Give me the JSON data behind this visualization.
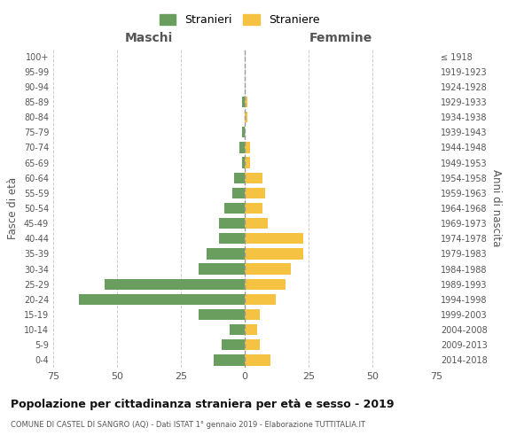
{
  "age_groups": [
    "100+",
    "95-99",
    "90-94",
    "85-89",
    "80-84",
    "75-79",
    "70-74",
    "65-69",
    "60-64",
    "55-59",
    "50-54",
    "45-49",
    "40-44",
    "35-39",
    "30-34",
    "25-29",
    "20-24",
    "15-19",
    "10-14",
    "5-9",
    "0-4"
  ],
  "birth_years": [
    "≤ 1918",
    "1919-1923",
    "1924-1928",
    "1929-1933",
    "1934-1938",
    "1939-1943",
    "1944-1948",
    "1949-1953",
    "1954-1958",
    "1959-1963",
    "1964-1968",
    "1969-1973",
    "1974-1978",
    "1979-1983",
    "1984-1988",
    "1989-1993",
    "1994-1998",
    "1999-2003",
    "2004-2008",
    "2009-2013",
    "2014-2018"
  ],
  "males": [
    0,
    0,
    0,
    1,
    0,
    1,
    2,
    1,
    4,
    5,
    8,
    10,
    10,
    15,
    18,
    55,
    65,
    18,
    6,
    9,
    12
  ],
  "females": [
    0,
    0,
    0,
    1,
    1,
    0,
    2,
    2,
    7,
    8,
    7,
    9,
    23,
    23,
    18,
    16,
    12,
    6,
    5,
    6,
    10
  ],
  "male_color": "#6a9e5e",
  "female_color": "#f5c242",
  "title": "Popolazione per cittadinanza straniera per età e sesso - 2019",
  "subtitle": "COMUNE DI CASTEL DI SANGRO (AQ) - Dati ISTAT 1° gennaio 2019 - Elaborazione TUTTITALIA.IT",
  "xlabel_left": "Maschi",
  "xlabel_right": "Femmine",
  "ylabel_left": "Fasce di età",
  "ylabel_right": "Anni di nascita",
  "legend_male": "Stranieri",
  "legend_female": "Straniere",
  "xlim": 75,
  "background_color": "#ffffff",
  "grid_color": "#cccccc",
  "dashed_line_color": "#999999"
}
